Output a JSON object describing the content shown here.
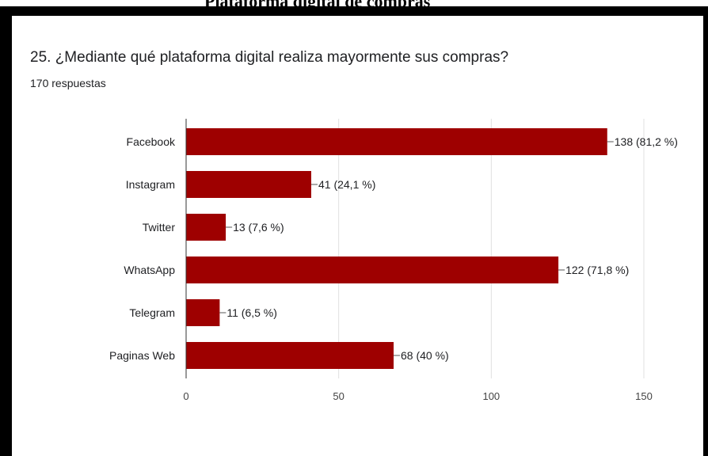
{
  "page": {
    "top_caption": "Plataforma digital de compras"
  },
  "chart_data": {
    "type": "bar",
    "orientation": "horizontal",
    "title": "25. ¿Mediante qué plataforma digital realiza mayormente sus compras?",
    "subtitle": "170 respuestas",
    "categories": [
      "Facebook",
      "Instagram",
      "Twitter",
      "WhatsApp",
      "Telegram",
      "Paginas Web"
    ],
    "values": [
      138,
      41,
      13,
      122,
      11,
      68
    ],
    "data_labels": [
      "138 (81,2 %)",
      "41 (24,1 %)",
      "13 (7,6 %)",
      "122 (71,8 %)",
      "11 (6,5 %)",
      "68 (40 %)"
    ],
    "xlim": [
      0,
      150
    ],
    "xticks": [
      0,
      50,
      100,
      150
    ],
    "bar_color": "#9e0000",
    "grid": true,
    "xlabel": "",
    "ylabel": ""
  }
}
